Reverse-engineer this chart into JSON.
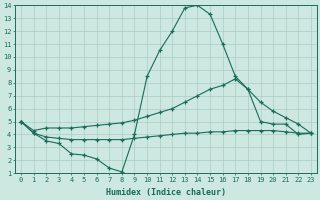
{
  "xlabel": "Humidex (Indice chaleur)",
  "x": [
    0,
    1,
    2,
    3,
    4,
    5,
    6,
    7,
    8,
    9,
    10,
    11,
    12,
    13,
    14,
    15,
    16,
    17,
    18,
    19,
    20,
    21,
    22,
    23
  ],
  "series": {
    "main": [
      5.0,
      4.1,
      3.5,
      3.3,
      2.5,
      2.4,
      2.1,
      1.4,
      1.1,
      4.0,
      8.5,
      10.5,
      12.0,
      13.8,
      14.0,
      13.3,
      11.0,
      8.5,
      7.5,
      5.0,
      4.8,
      4.8,
      4.0,
      4.1
    ],
    "upper": [
      5.0,
      4.3,
      4.5,
      4.5,
      4.5,
      4.6,
      4.7,
      4.8,
      4.9,
      5.1,
      5.4,
      5.7,
      6.0,
      6.5,
      7.0,
      7.5,
      7.8,
      8.3,
      7.5,
      6.5,
      5.8,
      5.3,
      4.8,
      4.1
    ],
    "lower": [
      5.0,
      4.1,
      3.8,
      3.7,
      3.6,
      3.6,
      3.6,
      3.6,
      3.6,
      3.7,
      3.8,
      3.9,
      4.0,
      4.1,
      4.1,
      4.2,
      4.2,
      4.3,
      4.3,
      4.3,
      4.3,
      4.2,
      4.1,
      4.1
    ]
  },
  "ylim": [
    1,
    14
  ],
  "xlim": [
    -0.5,
    23.5
  ],
  "yticks": [
    1,
    2,
    3,
    4,
    5,
    6,
    7,
    8,
    9,
    10,
    11,
    12,
    13,
    14
  ],
  "xticks": [
    0,
    1,
    2,
    3,
    4,
    5,
    6,
    7,
    8,
    9,
    10,
    11,
    12,
    13,
    14,
    15,
    16,
    17,
    18,
    19,
    20,
    21,
    22,
    23
  ],
  "bg_color": "#cce8e0",
  "grid_color": "#aaccc4",
  "line_color": "#1a6b5a",
  "marker": "+"
}
